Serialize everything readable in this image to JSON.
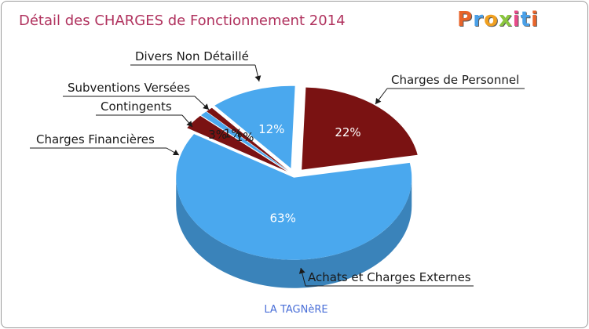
{
  "title": "Détail des CHARGES de Fonctionnement 2014",
  "logo": {
    "text": "Proxiti",
    "colors": [
      "#e8642a",
      "#4aa0e8",
      "#f0a020",
      "#8bc63f",
      "#e84a8a",
      "#4aa0e8",
      "#e8642a"
    ]
  },
  "footer": "LA TAGNèRE",
  "chart_data": {
    "type": "pie",
    "title": "Détail des CHARGES de Fonctionnement 2014",
    "slices": [
      {
        "label": "Charges de Personnel",
        "value": 22,
        "pct": "22%",
        "color": "#7a1212",
        "label_color": "#ffffff"
      },
      {
        "label": "Achats et Charges Externes",
        "value": 63,
        "pct": "63%",
        "color": "#4aa8ee",
        "label_color": "#ffffff"
      },
      {
        "label": "Charges Financières",
        "value": 3,
        "pct": "3%",
        "color": "#7a1212",
        "label_color": "#1a1a1a"
      },
      {
        "label": "Contingents",
        "value": 1,
        "pct": "1%",
        "color": "#4aa8ee",
        "label_color": "#1a1a1a"
      },
      {
        "label": "Subventions Versées",
        "value": 1,
        "pct": "1%",
        "color": "#7a1212",
        "label_color": "#1a1a1a"
      },
      {
        "label": "Divers Non Détaillé",
        "value": 12,
        "pct": "12%",
        "color": "#4aa8ee",
        "label_color": "#ffffff"
      }
    ]
  }
}
